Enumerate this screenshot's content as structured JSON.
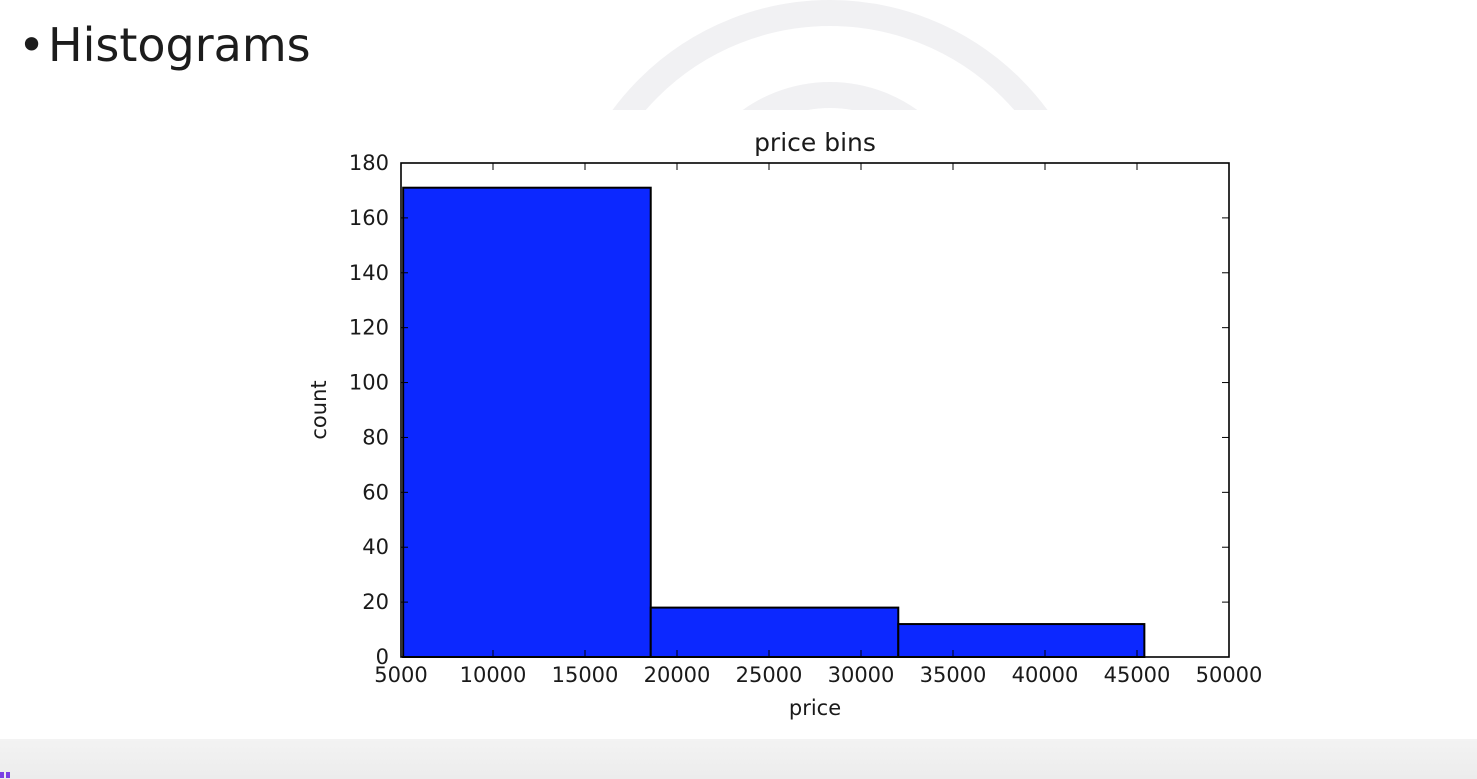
{
  "slide": {
    "bullet": "•",
    "heading": "Histograms"
  },
  "colors": {
    "bar_fill": "#0c28ff",
    "bar_edge": "#000000",
    "axis": "#000000",
    "text": "#1a1a1a",
    "background": "#ffffff"
  },
  "chart_data": {
    "type": "bar",
    "title": "price bins",
    "xlabel": "price",
    "ylabel": "count",
    "xlim": [
      5000,
      50000
    ],
    "ylim": [
      0,
      180
    ],
    "xticks": [
      5000,
      10000,
      15000,
      20000,
      25000,
      30000,
      35000,
      40000,
      45000,
      50000
    ],
    "yticks": [
      0,
      20,
      40,
      60,
      80,
      100,
      120,
      140,
      160,
      180
    ],
    "bins": [
      {
        "start": 5118,
        "end": 18572,
        "count": 171
      },
      {
        "start": 18572,
        "end": 32026,
        "count": 18
      },
      {
        "start": 32026,
        "end": 45400,
        "count": 12
      }
    ],
    "grid": false,
    "legend": "none"
  }
}
